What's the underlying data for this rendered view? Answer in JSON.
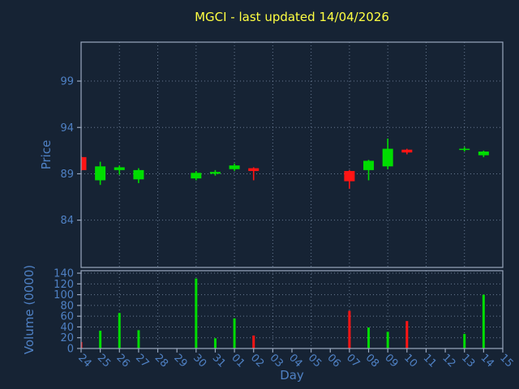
{
  "title": {
    "text": "MGCI - last updated 14/04/2026"
  },
  "colors": {
    "background": "#162334",
    "frame": "#9aa8bf",
    "grid": "#8497b2",
    "tick_label": "#4f81c4",
    "axis_label": "#4f81c4",
    "title": "#ffff42",
    "up": "#00dd00",
    "down": "#ff1414"
  },
  "chart_data": {
    "type": "candlestick",
    "title": "MGCI - last updated 14/04/2026",
    "xlabel": "Day",
    "legend": "none",
    "grid": "dotted",
    "price_panel": {
      "ylabel": "Price",
      "ticks": [
        84,
        89,
        94,
        99
      ],
      "range": [
        78.9,
        103.2
      ]
    },
    "volume_panel": {
      "ylabel": "Volume (0000)",
      "ticks": [
        0,
        20,
        40,
        60,
        80,
        100,
        120,
        140
      ],
      "range": [
        0,
        144.6
      ]
    },
    "x_labels": [
      "24",
      "25",
      "26",
      "27",
      "28",
      "29",
      "30",
      "31",
      "01",
      "02",
      "03",
      "04",
      "05",
      "06",
      "07",
      "08",
      "09",
      "10",
      "11",
      "12",
      "13",
      "14",
      "15"
    ],
    "gridline_every": 2,
    "candles": [
      {
        "day": "24",
        "open": 90.8,
        "high": 90.9,
        "low": 89.3,
        "close": 89.4,
        "volume": 12
      },
      {
        "day": "25",
        "open": 88.3,
        "high": 90.3,
        "low": 87.8,
        "close": 89.8,
        "volume": 33
      },
      {
        "day": "26",
        "open": 89.4,
        "high": 89.9,
        "low": 88.9,
        "close": 89.7,
        "volume": 66
      },
      {
        "day": "27",
        "open": 88.4,
        "high": 89.6,
        "low": 88.0,
        "close": 89.4,
        "volume": 34
      },
      {
        "day": "30",
        "open": 88.5,
        "high": 89.3,
        "low": 88.3,
        "close": 89.1,
        "volume": 130
      },
      {
        "day": "31",
        "open": 89.0,
        "high": 89.4,
        "low": 88.8,
        "close": 89.2,
        "volume": 19
      },
      {
        "day": "01",
        "open": 89.5,
        "high": 90.1,
        "low": 89.3,
        "close": 89.9,
        "volume": 56
      },
      {
        "day": "02",
        "open": 89.6,
        "high": 89.7,
        "low": 88.3,
        "close": 89.3,
        "volume": 24
      },
      {
        "day": "07",
        "open": 89.3,
        "high": 89.4,
        "low": 87.4,
        "close": 88.2,
        "volume": 70
      },
      {
        "day": "08",
        "open": 89.4,
        "high": 90.5,
        "low": 88.3,
        "close": 90.4,
        "volume": 39
      },
      {
        "day": "09",
        "open": 89.8,
        "high": 92.8,
        "low": 89.5,
        "close": 91.7,
        "volume": 31
      },
      {
        "day": "10",
        "open": 91.6,
        "high": 91.7,
        "low": 91.1,
        "close": 91.3,
        "volume": 51
      },
      {
        "day": "13",
        "open": 91.6,
        "high": 91.9,
        "low": 91.4,
        "close": 91.7,
        "volume": 27
      },
      {
        "day": "14",
        "open": 91.0,
        "high": 91.5,
        "low": 90.8,
        "close": 91.4,
        "volume": 100
      }
    ]
  }
}
